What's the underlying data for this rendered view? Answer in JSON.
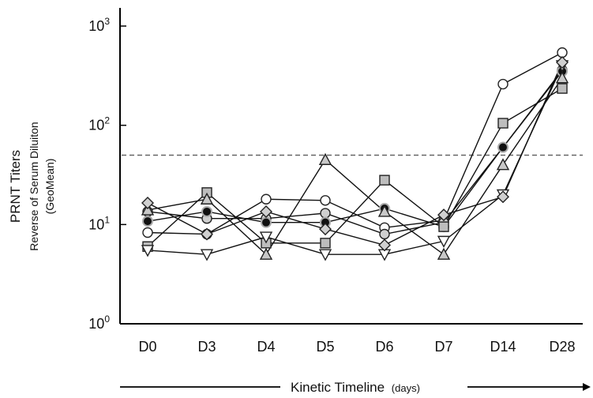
{
  "chart_data": {
    "type": "line",
    "yscale": "log",
    "ylim": [
      1,
      1000
    ],
    "ytick_values": [
      1,
      10,
      100,
      1000
    ],
    "ytick_labels": [
      {
        "base": "10",
        "exp": "0"
      },
      {
        "base": "10",
        "exp": "1"
      },
      {
        "base": "10",
        "exp": "2"
      },
      {
        "base": "10",
        "exp": "3"
      }
    ],
    "ylabel": "PRNT  Titers",
    "ylabel_sub1": "Reverse  of  Serum  Diluiton",
    "ylabel_sub2": "(GeoMean)",
    "xlabel": "Kinetic Timeline",
    "xlabel_unit": "(days)",
    "categories": [
      "D0",
      "D3",
      "D4",
      "D5",
      "D6",
      "D7",
      "D14",
      "D28"
    ],
    "threshold": 50,
    "series": [
      {
        "marker": "circle-open",
        "values": [
          8.3,
          8.0,
          18,
          17.5,
          9.3,
          11,
          260,
          540
        ]
      },
      {
        "marker": "circle-lightgray",
        "values": [
          13.5,
          11.5,
          11.5,
          13,
          8.0,
          10.5,
          60,
          360
        ]
      },
      {
        "marker": "circle-black",
        "values": [
          10.8,
          13.5,
          10.5,
          10.5,
          14.5,
          9.5,
          60,
          350
        ]
      },
      {
        "marker": "square",
        "values": [
          6.0,
          21,
          6.5,
          6.5,
          28,
          9.5,
          105,
          235
        ]
      },
      {
        "marker": "triangle-up",
        "values": [
          14,
          18,
          5.0,
          45,
          13.5,
          5.0,
          40,
          300
        ]
      },
      {
        "marker": "triangle-down",
        "values": [
          5.5,
          5.0,
          7.5,
          5.0,
          5.0,
          6.8,
          20,
          400
        ]
      },
      {
        "marker": "diamond",
        "values": [
          16.5,
          8.0,
          13.5,
          9.0,
          6.2,
          12.5,
          19,
          430
        ]
      }
    ]
  }
}
